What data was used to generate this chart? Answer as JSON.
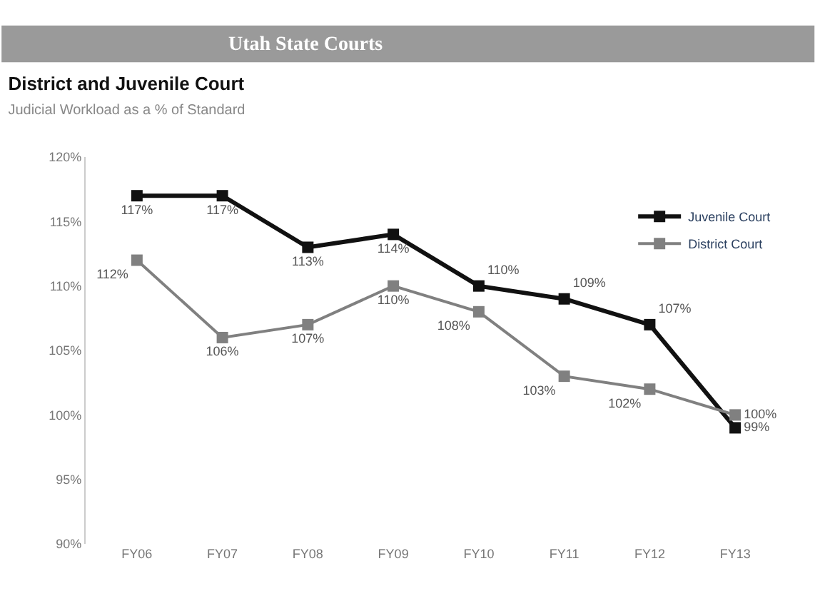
{
  "chart_data": {
    "type": "line",
    "title": "District and Juvenile Court",
    "subtitle": "Judicial Workload as a % of Standard",
    "annotations": [
      "Utah State Courts"
    ],
    "categories": [
      "FY06",
      "FY07",
      "FY08",
      "FY09",
      "FY10",
      "FY11",
      "FY12",
      "FY13"
    ],
    "series": [
      {
        "name": "Juvenile Court",
        "color": "#111111",
        "values": [
          117,
          117,
          113,
          114,
          110,
          109,
          107,
          99
        ],
        "value_labels": [
          "117%",
          "117%",
          "113%",
          "114%",
          "110%",
          "109%",
          "107%",
          "99%"
        ]
      },
      {
        "name": "District Court",
        "color": "#808080",
        "values": [
          112,
          106,
          107,
          110,
          108,
          103,
          102,
          100
        ],
        "value_labels": [
          "112%",
          "106%",
          "107%",
          "110%",
          "108%",
          "103%",
          "102%",
          "100%"
        ]
      }
    ],
    "ylim": [
      90,
      120
    ],
    "yticks": [
      {
        "value": 90,
        "label": "90%"
      },
      {
        "value": 95,
        "label": "95%"
      },
      {
        "value": 100,
        "label": "100%"
      },
      {
        "value": 105,
        "label": "105%"
      },
      {
        "value": 110,
        "label": "110%"
      },
      {
        "value": 115,
        "label": "115%"
      },
      {
        "value": 120,
        "label": "120%"
      }
    ],
    "legend": "top right",
    "marker": "square",
    "line_style": "solid"
  }
}
